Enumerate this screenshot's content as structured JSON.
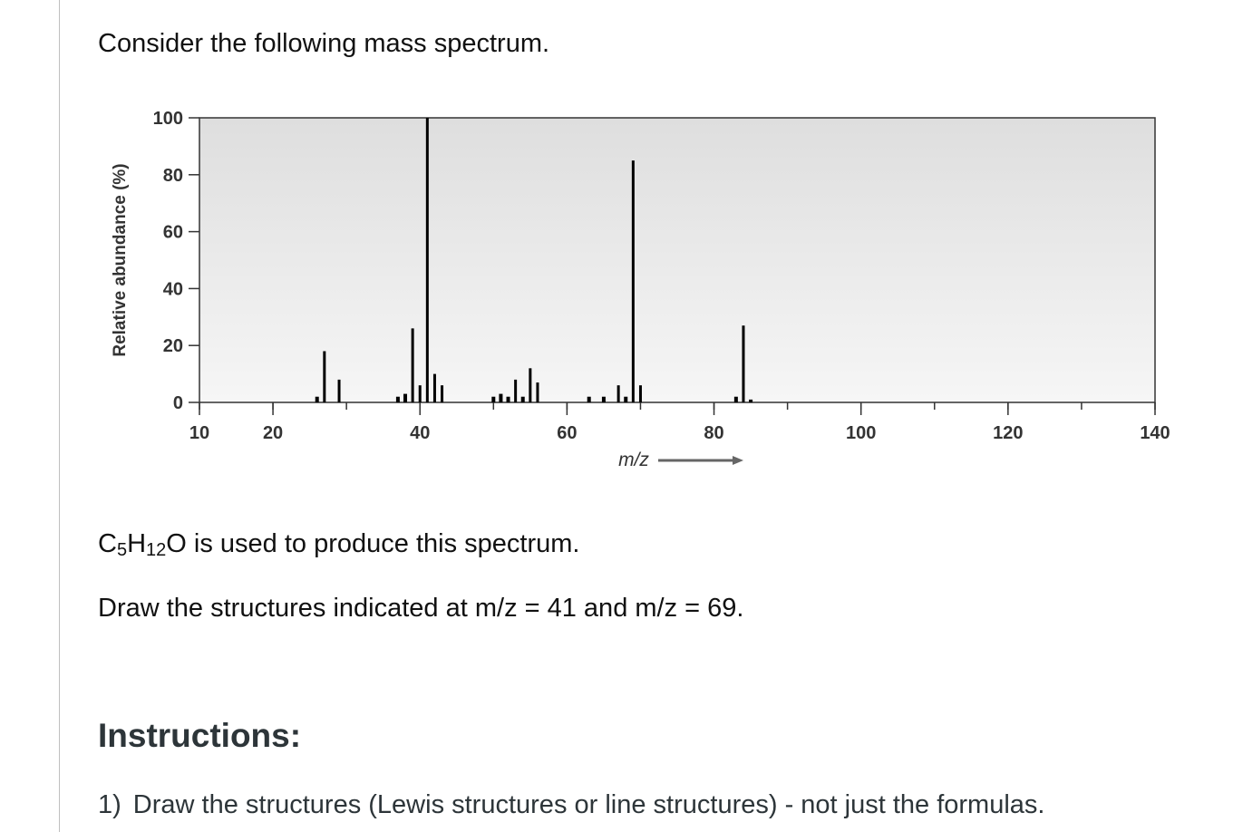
{
  "intro_text": "Consider the following mass spectrum.",
  "formula": {
    "c": "C",
    "c_n": "5",
    "h": "H",
    "h_n": "12",
    "o": "O",
    "rest": " is used to produce this spectrum."
  },
  "task_text": "Draw the structures indicated at m/z = 41 and m/z = 69.",
  "instructions": {
    "heading": "Instructions:",
    "items": [
      {
        "number": "1)",
        "text": "Draw the structures (Lewis structures or line structures) - not just the formulas."
      }
    ]
  },
  "chart_data": {
    "type": "bar",
    "xlabel": "m/z",
    "ylabel": "Relative abundance (%)",
    "xlim": [
      10,
      140
    ],
    "ylim": [
      0,
      100
    ],
    "x_ticks": [
      10,
      20,
      40,
      60,
      80,
      100,
      120,
      140
    ],
    "y_ticks": [
      0,
      20,
      40,
      60,
      80,
      100
    ],
    "background_color": "#dedede",
    "bar_color": "#000000",
    "peaks": [
      {
        "mz": 26,
        "abundance": 2
      },
      {
        "mz": 27,
        "abundance": 18
      },
      {
        "mz": 29,
        "abundance": 8
      },
      {
        "mz": 37,
        "abundance": 2
      },
      {
        "mz": 38,
        "abundance": 3
      },
      {
        "mz": 39,
        "abundance": 26
      },
      {
        "mz": 40,
        "abundance": 6
      },
      {
        "mz": 41,
        "abundance": 100
      },
      {
        "mz": 42,
        "abundance": 10
      },
      {
        "mz": 43,
        "abundance": 6
      },
      {
        "mz": 50,
        "abundance": 2
      },
      {
        "mz": 51,
        "abundance": 3
      },
      {
        "mz": 52,
        "abundance": 2
      },
      {
        "mz": 53,
        "abundance": 8
      },
      {
        "mz": 54,
        "abundance": 2
      },
      {
        "mz": 55,
        "abundance": 12
      },
      {
        "mz": 56,
        "abundance": 7
      },
      {
        "mz": 63,
        "abundance": 2
      },
      {
        "mz": 65,
        "abundance": 2
      },
      {
        "mz": 67,
        "abundance": 6
      },
      {
        "mz": 68,
        "abundance": 2
      },
      {
        "mz": 69,
        "abundance": 85
      },
      {
        "mz": 70,
        "abundance": 6
      },
      {
        "mz": 83,
        "abundance": 2
      },
      {
        "mz": 84,
        "abundance": 27
      },
      {
        "mz": 85,
        "abundance": 1
      }
    ]
  }
}
